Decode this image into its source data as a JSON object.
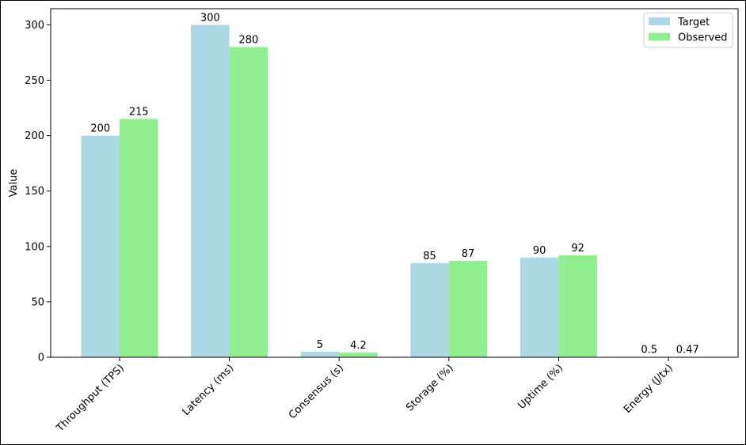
{
  "chart_data": {
    "type": "bar",
    "categories": [
      "Throughput (TPS)",
      "Latency (ms)",
      "Consensus (s)",
      "Storage (%)",
      "Uptime (%)",
      "Energy (J/tx)"
    ],
    "series": [
      {
        "name": "Target",
        "values": [
          200,
          300,
          5,
          85,
          90,
          0.5
        ],
        "labels": [
          "200",
          "300",
          "5",
          "85",
          "90",
          "0.5"
        ],
        "color": "#add8e6"
      },
      {
        "name": "Observed",
        "values": [
          215,
          280,
          4.2,
          87,
          92,
          0.47
        ],
        "labels": [
          "215",
          "280",
          "4.2",
          "87",
          "92",
          "0.47"
        ],
        "color": "#90ee90"
      }
    ],
    "xlabel": "",
    "ylabel": "Value",
    "ylim": [
      0,
      300
    ],
    "yticks": [
      0,
      50,
      100,
      150,
      200,
      250,
      300
    ],
    "legend_position": "top-right",
    "grid": false
  }
}
